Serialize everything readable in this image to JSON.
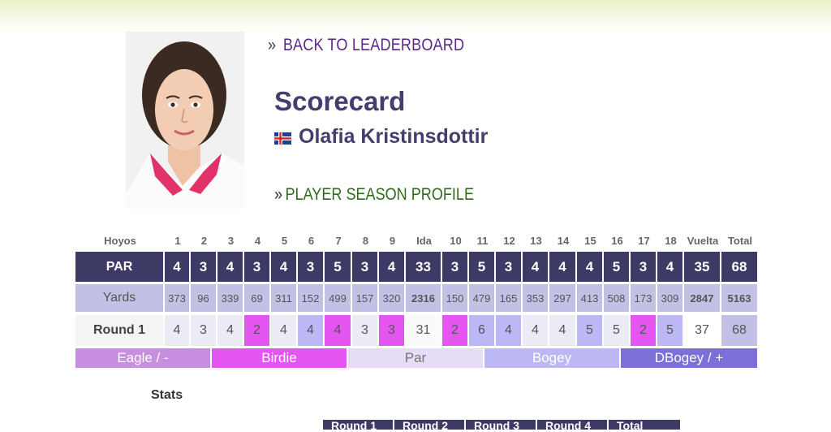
{
  "nav": {
    "back_raquo": "»",
    "back_label": "BACK TO LEADERBOARD",
    "profile_raquo": "»",
    "profile_label": "PLAYER SEASON PROFILE"
  },
  "page": {
    "title": "Scorecard",
    "player_name": "Olafia Kristinsdottir",
    "flag_icon": "iceland-flag-icon"
  },
  "scorecard": {
    "headers": [
      "Hoyos",
      "1",
      "2",
      "3",
      "4",
      "5",
      "6",
      "7",
      "8",
      "9",
      "Ida",
      "10",
      "11",
      "12",
      "13",
      "14",
      "15",
      "16",
      "17",
      "18",
      "Vuelta",
      "Total"
    ],
    "par": [
      "PAR",
      "4",
      "3",
      "4",
      "3",
      "4",
      "3",
      "5",
      "3",
      "4",
      "33",
      "3",
      "5",
      "3",
      "4",
      "4",
      "4",
      "5",
      "3",
      "4",
      "35",
      "68"
    ],
    "yards": [
      "Yards",
      "373",
      "96",
      "339",
      "69",
      "311",
      "152",
      "499",
      "157",
      "320",
      "2316",
      "150",
      "479",
      "165",
      "353",
      "297",
      "413",
      "508",
      "173",
      "309",
      "2847",
      "5163"
    ],
    "round": [
      "Round 1",
      "4",
      "3",
      "4",
      "2",
      "4",
      "4",
      "4",
      "3",
      "3",
      "31",
      "2",
      "6",
      "4",
      "4",
      "4",
      "5",
      "5",
      "2",
      "5",
      "37",
      "68"
    ],
    "round_results": [
      "",
      "par",
      "par",
      "par",
      "birdie",
      "par",
      "bogey",
      "birdie",
      "par",
      "birdie",
      "",
      "birdie",
      "bogey",
      "bogey",
      "par",
      "par",
      "bogey",
      "par",
      "birdie",
      "bogey",
      "",
      ""
    ]
  },
  "legend": [
    {
      "label": "Eagle / -",
      "color": "#c88ee0"
    },
    {
      "label": "Birdie",
      "color": "#e455f2"
    },
    {
      "label": "Par",
      "color": "#e7dcf6"
    },
    {
      "label": "Bogey",
      "color": "#bcb8f6"
    },
    {
      "label": "DBogey / +",
      "color": "#7b6fd8"
    }
  ],
  "stats": {
    "label": "Stats",
    "tabs": [
      "Round 1",
      "Round 2",
      "Round 3",
      "Round 4",
      "Total"
    ]
  }
}
